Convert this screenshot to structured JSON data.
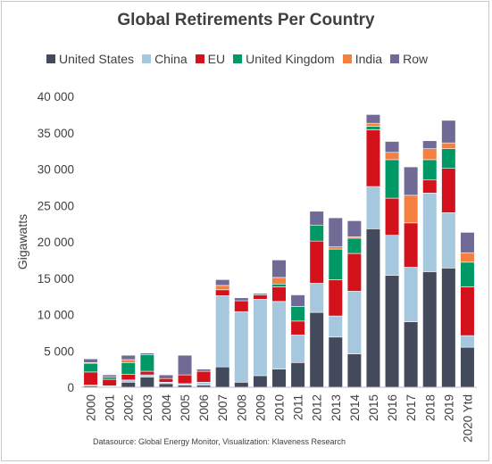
{
  "chart_data": {
    "type": "bar",
    "stacked": true,
    "title": "Global Retirements Per Country",
    "ylabel": "Gigawatts",
    "xlabel": "",
    "ylim": [
      0,
      40000
    ],
    "yticks": [
      0,
      5000,
      10000,
      15000,
      20000,
      25000,
      30000,
      35000,
      40000
    ],
    "ytick_labels": [
      "0",
      "5 000",
      "10 000",
      "15 000",
      "20 000",
      "25 000",
      "30 000",
      "35 000",
      "40 000"
    ],
    "legend_position": "top",
    "grid": false,
    "categories": [
      "2000",
      "2001",
      "2002",
      "2003",
      "2004",
      "2005",
      "2006",
      "2007",
      "2008",
      "2009",
      "2010",
      "2011",
      "2012",
      "2013",
      "2014",
      "2015",
      "2016",
      "2017",
      "2018",
      "2019",
      "2020 Ytd"
    ],
    "series": [
      {
        "name": "United States",
        "color": "#434a5c",
        "values": [
          200,
          100,
          700,
          1400,
          500,
          300,
          300,
          2800,
          700,
          1600,
          2500,
          3400,
          10300,
          6900,
          4600,
          21800,
          15400,
          9000,
          15900,
          16400,
          5500
        ]
      },
      {
        "name": "China",
        "color": "#a6c8df",
        "values": [
          100,
          100,
          300,
          300,
          200,
          200,
          400,
          9800,
          9700,
          10500,
          9300,
          3800,
          4000,
          2900,
          8600,
          5800,
          5500,
          7500,
          10800,
          7600,
          1600
        ]
      },
      {
        "name": "EU",
        "color": "#d4121c",
        "values": [
          1800,
          900,
          800,
          500,
          500,
          1200,
          1500,
          800,
          1500,
          600,
          2000,
          1900,
          5800,
          5000,
          5200,
          7800,
          5100,
          6100,
          1800,
          6100,
          6700
        ]
      },
      {
        "name": "United Kingdom",
        "color": "#009966",
        "values": [
          1200,
          300,
          1600,
          2300,
          0,
          0,
          0,
          0,
          0,
          0,
          400,
          2000,
          2200,
          4200,
          2100,
          500,
          5300,
          0,
          2800,
          2700,
          3400
        ]
      },
      {
        "name": "India",
        "color": "#f47f40",
        "values": [
          100,
          0,
          400,
          0,
          0,
          0,
          0,
          600,
          0,
          0,
          900,
          0,
          0,
          300,
          200,
          400,
          1000,
          3800,
          1500,
          800,
          1300
        ]
      },
      {
        "name": "Row",
        "color": "#6f6a96",
        "values": [
          500,
          300,
          600,
          200,
          500,
          2700,
          300,
          800,
          400,
          200,
          2400,
          1600,
          1900,
          4000,
          2200,
          1200,
          1500,
          3900,
          1100,
          3100,
          2800
        ]
      }
    ],
    "source": "Datasource: Global Energy Monitor, Visualization: Klaveness Research"
  }
}
